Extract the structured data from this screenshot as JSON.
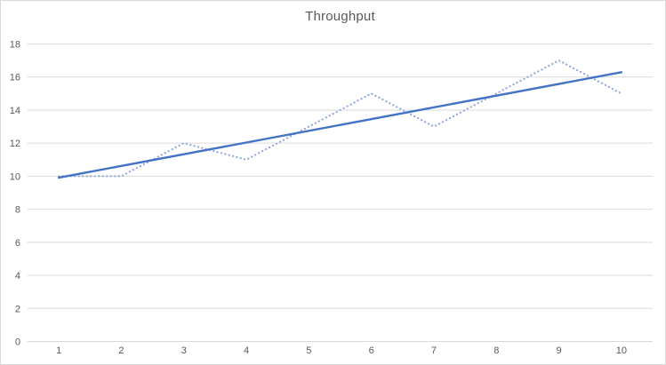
{
  "chart": {
    "title": "Throughput"
  },
  "chart_data": {
    "type": "line",
    "title": "Throughput",
    "x": [
      1,
      2,
      3,
      4,
      5,
      6,
      7,
      8,
      9,
      10
    ],
    "series": [
      {
        "name": "throughput",
        "style": "dotted",
        "color": "#8EA9DB",
        "values": [
          10,
          10,
          12,
          11,
          13,
          15,
          13,
          15,
          17,
          15
        ]
      }
    ],
    "trendline": {
      "name": "linear-trendline",
      "style": "solid",
      "color": "#4472C4",
      "x_start": 1,
      "y_start": 9.91,
      "x_end": 10,
      "y_end": 16.29
    },
    "xlabel": "",
    "ylabel": "",
    "ylim": [
      0,
      18
    ],
    "ytick_step": 2,
    "yticks": [
      0,
      2,
      4,
      6,
      8,
      10,
      12,
      14,
      16,
      18
    ],
    "grid": "horizontal",
    "legend": "none",
    "colors": {
      "gridline": "#d9d9d9",
      "axis_text": "#595959",
      "border": "#d9d9d9",
      "background": "#ffffff"
    }
  }
}
